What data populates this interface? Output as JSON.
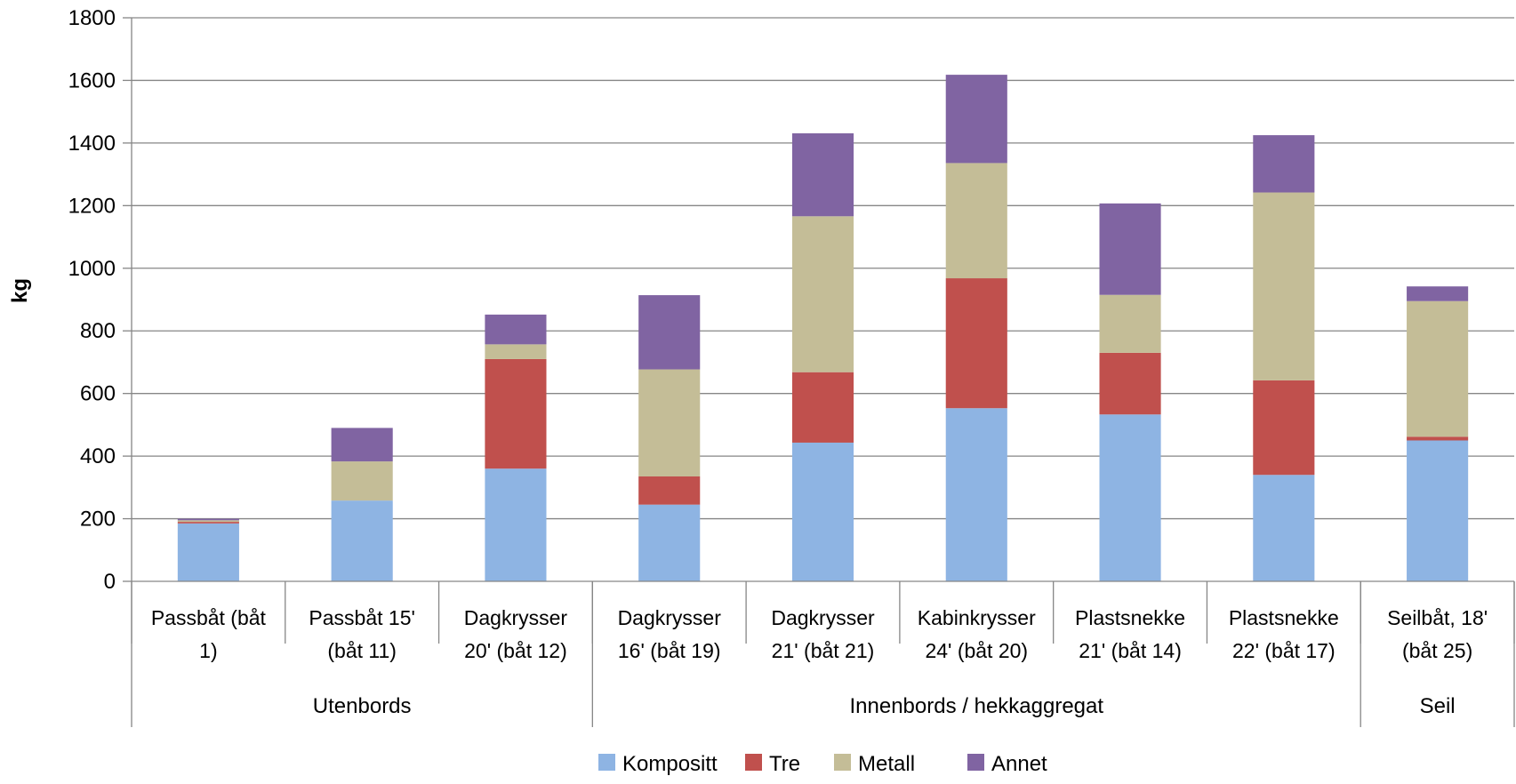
{
  "chart_data": {
    "type": "bar",
    "stacked": true,
    "ylabel": "kg",
    "ylim": [
      0,
      1800
    ],
    "yticks": [
      0,
      200,
      400,
      600,
      800,
      1000,
      1200,
      1400,
      1600,
      1800
    ],
    "grid": true,
    "legend_position": "bottom",
    "categories": [
      [
        "Passbåt (båt",
        "1)"
      ],
      [
        "Passbåt 15'",
        "(båt 11)"
      ],
      [
        "Dagkrysser",
        "20' (båt 12)"
      ],
      [
        "Dagkrysser",
        "16' (båt 19)"
      ],
      [
        "Dagkrysser",
        "21' (båt 21)"
      ],
      [
        "Kabinkrysser",
        "24' (båt 20)"
      ],
      [
        "Plastsnekke",
        "21' (båt 14)"
      ],
      [
        "Plastsnekke",
        "22' (båt 17)"
      ],
      [
        "Seilbåt, 18'",
        "(båt 25)"
      ]
    ],
    "groups": [
      {
        "label": "Utenbords",
        "count": 3
      },
      {
        "label": "Innenbords / hekkaggregat",
        "count": 5
      },
      {
        "label": "Seil",
        "count": 1
      }
    ],
    "series": [
      {
        "name": "Kompositt",
        "color": "#8EB4E3",
        "values": [
          185,
          258,
          360,
          245,
          443,
          553,
          533,
          340,
          450
        ]
      },
      {
        "name": "Tre",
        "color": "#C0504D",
        "values": [
          5,
          0,
          350,
          90,
          225,
          415,
          197,
          302,
          12
        ]
      },
      {
        "name": "Metall",
        "color": "#C4BD97",
        "values": [
          5,
          125,
          47,
          342,
          498,
          368,
          185,
          600,
          433
        ]
      },
      {
        "name": "Annet",
        "color": "#8064A2",
        "values": [
          5,
          107,
          95,
          237,
          265,
          282,
          292,
          183,
          47
        ]
      }
    ]
  }
}
